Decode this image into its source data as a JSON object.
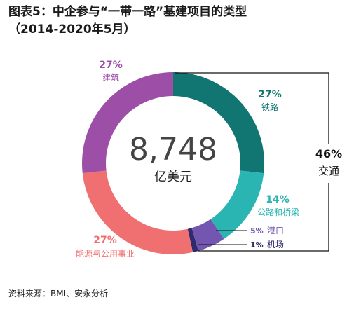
{
  "title": "图表5：中企参与“一带一路”基建项目的类型",
  "subtitle": "（2014-2020年5月）",
  "source": "资料来源：BMI、安永分析",
  "chart_data": {
    "type": "pie",
    "center_value": "8,748",
    "center_unit": "亿美元",
    "slices": [
      {
        "label": "铁路",
        "value": 27,
        "pct_label": "27%",
        "color": "#117572"
      },
      {
        "label": "公路和桥梁",
        "value": 14,
        "pct_label": "14%",
        "color": "#2ab5b2"
      },
      {
        "label": "港口",
        "value": 5,
        "pct_label": "5%",
        "color": "#7356b0"
      },
      {
        "label": "机场",
        "value": 1,
        "pct_label": "1%",
        "color": "#2f2a6d"
      },
      {
        "label": "能源与公用事业",
        "value": 27,
        "pct_label": "27%",
        "color": "#f07072"
      },
      {
        "label": "建筑",
        "value": 27,
        "pct_label": "27%",
        "color": "#9d4fa8"
      }
    ],
    "group": {
      "label": "交通",
      "pct_label": "46%"
    }
  }
}
